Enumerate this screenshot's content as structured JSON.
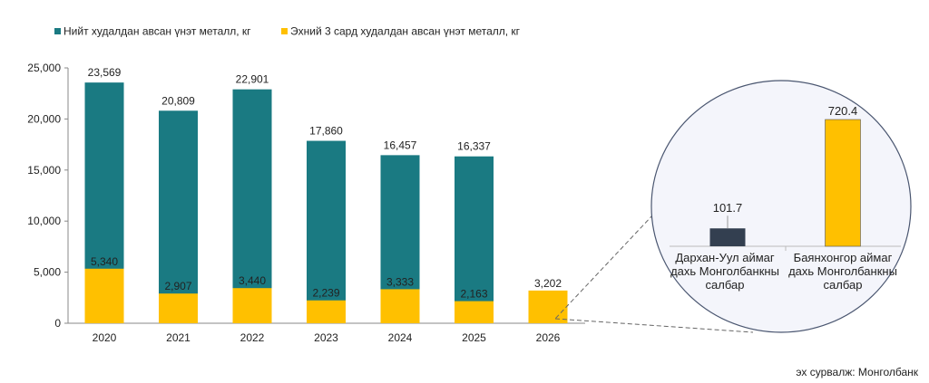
{
  "chart_data": [
    {
      "type": "bar",
      "stacking": "overlay",
      "categories": [
        "2020",
        "2021",
        "2022",
        "2023",
        "2024",
        "2025",
        "2026"
      ],
      "series": [
        {
          "name": "Нийт худалдан авсан үнэт металл, кг",
          "color": "#1a7a82",
          "values": [
            23569,
            20809,
            22901,
            17860,
            16457,
            16337,
            null
          ],
          "labels": [
            "23,569",
            "20,809",
            "22,901",
            "17,860",
            "16,457",
            "16,337",
            ""
          ]
        },
        {
          "name": "Эхний 3 сард худалдан авсан үнэт металл, кг",
          "color": "#ffc000",
          "values": [
            5340,
            2907,
            3440,
            2239,
            3333,
            2163,
            3202
          ],
          "labels": [
            "5,340",
            "2,907",
            "3,440",
            "2,239",
            "3,333",
            "2,163",
            "3,202"
          ]
        }
      ],
      "ylim": [
        0,
        25000
      ],
      "yticks": [
        0,
        5000,
        10000,
        15000,
        20000,
        25000
      ],
      "ytick_labels": [
        "0",
        "5,000",
        "10,000",
        "15,000",
        "20,000",
        "25,000"
      ],
      "legend": "top-left"
    },
    {
      "type": "bar",
      "title": "",
      "categories": [
        [
          "Дархан-Уул аймаг",
          "дахь Монголбанкны",
          "салбар"
        ],
        [
          "Баянхонгор аймаг",
          "дахь Монголбанкны",
          "салбар"
        ]
      ],
      "values": [
        101.7,
        720.4
      ],
      "labels": [
        "101.7",
        "720.4"
      ],
      "colors": [
        "#333f50",
        "#ffc000"
      ]
    }
  ],
  "source": "эх сурвалж: Монголбанк"
}
